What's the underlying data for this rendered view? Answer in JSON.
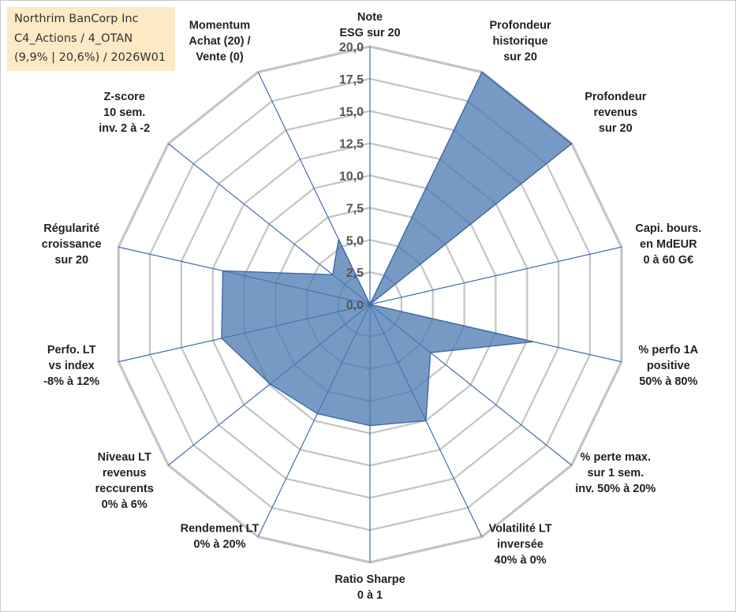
{
  "info_box": {
    "company": "Northrim BanCorp Inc",
    "portfolio": "C4_Actions / 4_OTAN",
    "stats": "(9,9% | 20,6%) / 2026W01"
  },
  "chart_data": {
    "type": "radar",
    "title": "",
    "rmax": 20,
    "tick_values": [
      0,
      2.5,
      5,
      7.5,
      10,
      12.5,
      15,
      17.5,
      20
    ],
    "tick_labels": [
      "0,0",
      "2,5",
      "5,0",
      "7,5",
      "10,0",
      "12,5",
      "15,0",
      "17,5",
      "20,0"
    ],
    "axes": [
      {
        "label": [
          "Note",
          "ESG sur 20"
        ]
      },
      {
        "label": [
          "Profondeur",
          "historique",
          "sur 20"
        ]
      },
      {
        "label": [
          "Profondeur",
          "revenus",
          "sur 20"
        ]
      },
      {
        "label": [
          "Capi. bours.",
          "en MdEUR",
          "0 à 60 G€"
        ]
      },
      {
        "label": [
          "% perfo 1A",
          "positive",
          "50% à 80%"
        ]
      },
      {
        "label": [
          "% perte max.",
          "sur 1 sem.",
          "inv. 50% à 20%"
        ]
      },
      {
        "label": [
          "Volatilité LT",
          "inversée",
          "40% à 0%"
        ]
      },
      {
        "label": [
          "Ratio Sharpe",
          "0 à 1"
        ]
      },
      {
        "label": [
          "Rendement LT",
          "0% à 20%"
        ]
      },
      {
        "label": [
          "Niveau LT",
          "revenus",
          "reccurents",
          "0% à 6%"
        ]
      },
      {
        "label": [
          "Perfo. LT",
          "vs index",
          "-8% à 12%"
        ]
      },
      {
        "label": [
          "Régularité",
          "croissance",
          "sur 20"
        ]
      },
      {
        "label": [
          "Z-score",
          "10 sem.",
          "inv. 2 à -2"
        ]
      },
      {
        "label": [
          "Momentum",
          "Achat (20) /",
          "Vente (0)"
        ]
      }
    ],
    "series": [
      {
        "name": "Northrim BanCorp Inc",
        "color": "#4a78b0",
        "values": [
          0,
          20,
          20,
          0,
          13,
          6,
          10,
          9.4,
          9.4,
          9.9,
          11.8,
          11.7,
          3.7,
          5.6
        ]
      }
    ]
  }
}
